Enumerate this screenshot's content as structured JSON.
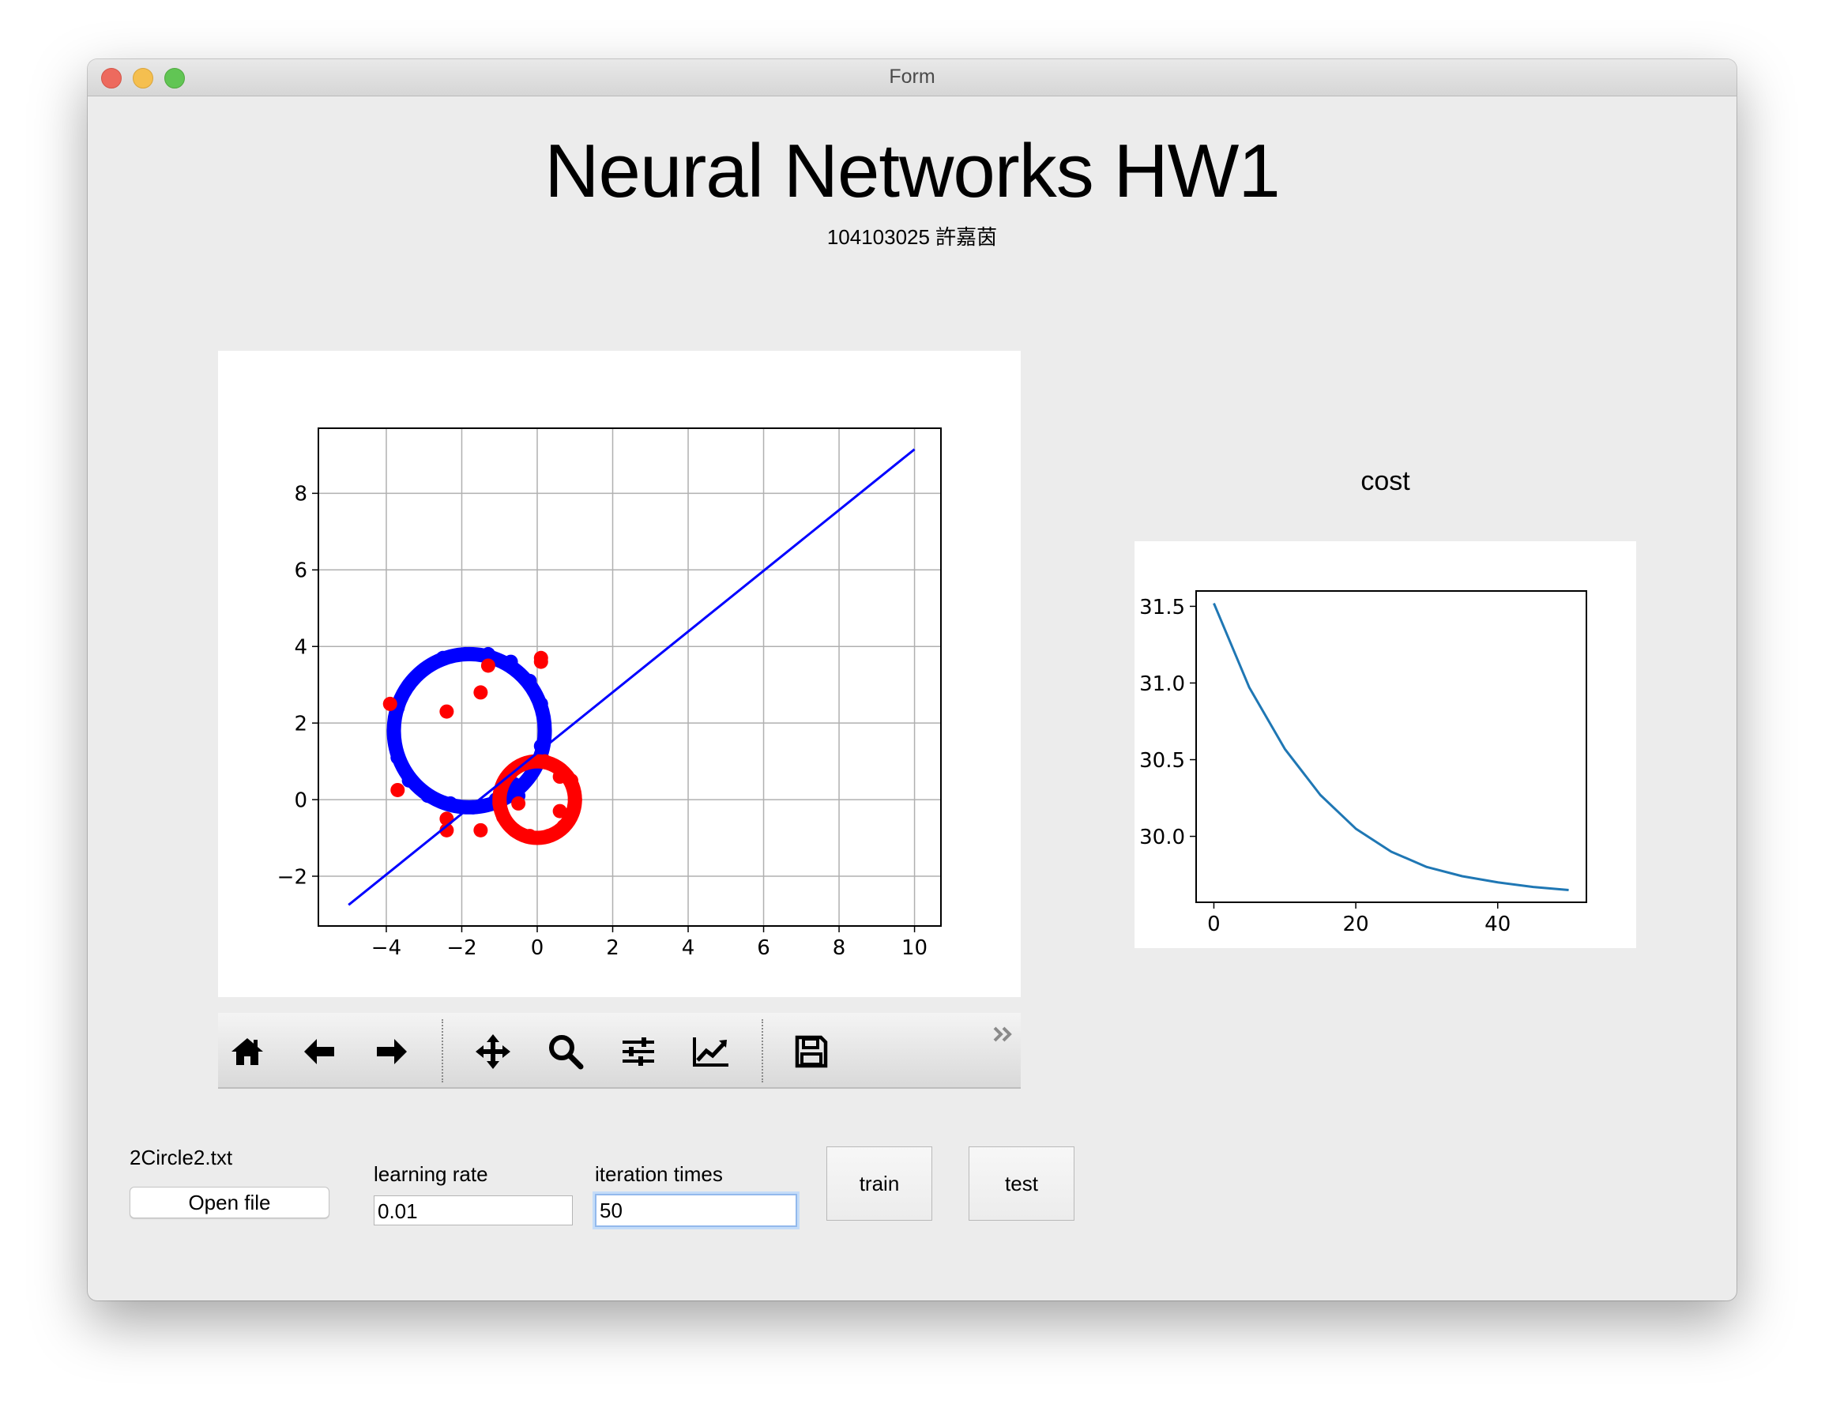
{
  "window": {
    "title": "Form"
  },
  "header": {
    "title": "Neural Networks HW1",
    "subtitle": "104103025 許嘉茵"
  },
  "cost_panel": {
    "label": "cost"
  },
  "toolbar": {
    "tools": [
      "home-icon",
      "back-arrow-icon",
      "forward-arrow-icon",
      "pan-icon",
      "zoom-icon",
      "configure-subplots-icon",
      "edit-axis-icon",
      "save-icon"
    ],
    "more_icon": "chevron-double-right-icon"
  },
  "controls": {
    "file_name": "2Circle2.txt",
    "open_file_label": "Open file",
    "learning_rate_label": "learning rate",
    "learning_rate_value": "0.01",
    "iteration_label": "iteration times",
    "iteration_value": "50",
    "train_label": "train",
    "test_label": "test"
  },
  "chart_data": [
    {
      "type": "scatter",
      "title": "",
      "xlabel": "",
      "ylabel": "",
      "xlim": [
        -5.8,
        10.7
      ],
      "ylim": [
        -3.3,
        9.7
      ],
      "xticks": [
        -4,
        -2,
        0,
        2,
        4,
        6,
        8,
        10
      ],
      "yticks": [
        -2,
        0,
        2,
        4,
        6,
        8
      ],
      "xtick_labels": [
        "−4",
        "−2",
        "0",
        "2",
        "4",
        "6",
        "8",
        "10"
      ],
      "ytick_labels": [
        "−2",
        "0",
        "2",
        "4",
        "6",
        "8"
      ],
      "grid": true,
      "series": [
        {
          "kind": "circle-cluster",
          "color": "#0000ff",
          "center": [
            -1.8,
            1.8
          ],
          "radius": 2.0,
          "sample_points": [
            [
              0.2,
              1.8
            ],
            [
              0.1,
              2.5
            ],
            [
              -0.2,
              3.1
            ],
            [
              -0.7,
              3.6
            ],
            [
              -1.3,
              3.8
            ],
            [
              -1.9,
              3.8
            ],
            [
              -2.5,
              3.7
            ],
            [
              -3.0,
              3.4
            ],
            [
              -3.4,
              3.0
            ],
            [
              -3.7,
              2.4
            ],
            [
              -3.8,
              1.8
            ],
            [
              -3.7,
              1.1
            ],
            [
              -3.4,
              0.5
            ],
            [
              -2.9,
              0.1
            ],
            [
              -2.3,
              -0.1
            ],
            [
              -1.7,
              -0.2
            ],
            [
              -1.1,
              0.0
            ],
            [
              -0.6,
              0.4
            ],
            [
              -0.2,
              0.9
            ],
            [
              0.1,
              1.4
            ],
            [
              -0.5,
              0.1
            ],
            [
              -0.8,
              0.3
            ]
          ]
        },
        {
          "kind": "circle-cluster",
          "color": "#ff0000",
          "center": [
            0.0,
            0.0
          ],
          "radius": 1.0,
          "sample_points": [
            [
              1.0,
              0.0
            ],
            [
              0.9,
              0.5
            ],
            [
              0.6,
              0.8
            ],
            [
              0.2,
              1.0
            ],
            [
              -0.3,
              0.95
            ],
            [
              -0.7,
              0.7
            ],
            [
              -0.95,
              0.3
            ],
            [
              -1.0,
              -0.1
            ],
            [
              -0.9,
              -0.45
            ],
            [
              -0.6,
              -0.8
            ],
            [
              -0.2,
              -0.95
            ],
            [
              0.3,
              -0.95
            ],
            [
              0.7,
              -0.7
            ],
            [
              0.95,
              -0.3
            ]
          ]
        },
        {
          "kind": "outliers",
          "color": "#ff0000",
          "points": [
            [
              -3.9,
              2.5
            ],
            [
              -2.4,
              2.3
            ],
            [
              -1.5,
              2.8
            ],
            [
              -1.3,
              3.5
            ],
            [
              0.1,
              3.6
            ],
            [
              0.1,
              3.7
            ],
            [
              -3.7,
              0.25
            ],
            [
              -2.4,
              -0.5
            ],
            [
              -2.4,
              -0.8
            ],
            [
              -1.5,
              -0.8
            ],
            [
              -0.5,
              -0.1
            ],
            [
              0.6,
              0.6
            ],
            [
              0.8,
              0.6
            ],
            [
              0.6,
              -0.3
            ]
          ]
        },
        {
          "kind": "line",
          "name": "",
          "color": "#0000ff",
          "x": [
            -5,
            10
          ],
          "y": [
            -2.75,
            9.15
          ]
        }
      ]
    },
    {
      "type": "line",
      "title": "cost",
      "xlabel": "",
      "ylabel": "",
      "xlim": [
        -2.5,
        52.5
      ],
      "ylim": [
        29.57,
        31.6
      ],
      "xticks": [
        0,
        20,
        40
      ],
      "yticks": [
        30.0,
        30.5,
        31.0,
        31.5
      ],
      "xtick_labels": [
        "0",
        "20",
        "40"
      ],
      "ytick_labels": [
        "30.0",
        "30.5",
        "31.0",
        "31.5"
      ],
      "grid": false,
      "series": [
        {
          "name": "",
          "color": "#1f77b4",
          "x": [
            0,
            5,
            10,
            15,
            20,
            25,
            30,
            35,
            40,
            45,
            50
          ],
          "y": [
            31.52,
            30.97,
            30.57,
            30.27,
            30.05,
            29.9,
            29.8,
            29.74,
            29.7,
            29.67,
            29.65
          ]
        }
      ]
    }
  ]
}
